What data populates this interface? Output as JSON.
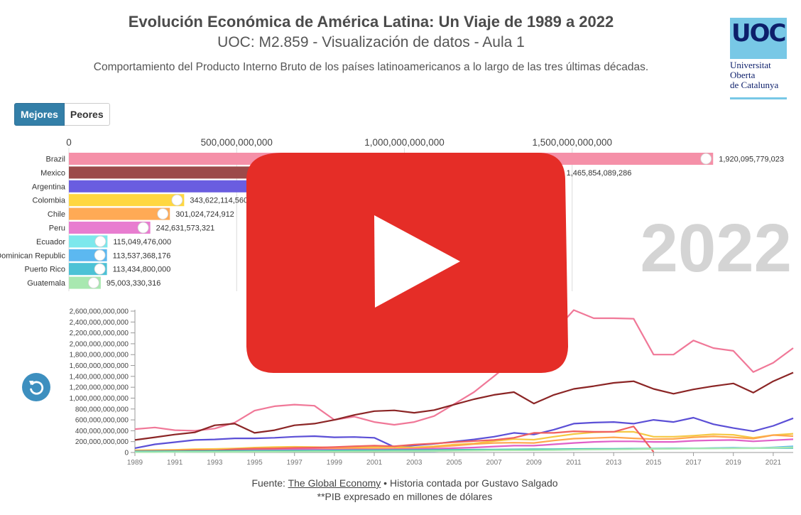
{
  "header": {
    "title": "Evolución Económica de América Latina: Un Viaje de 1989 a 2022",
    "subtitle": "UOC: M2.859 - Visualización de datos - Aula 1",
    "description": "Comportamiento del Producto Interno Bruto de los países latinoamericanos a lo largo de las tres últimas décadas."
  },
  "logo": {
    "mark": "UOC",
    "lines": [
      "Universitat",
      "Oberta",
      "de Catalunya"
    ]
  },
  "toggle": {
    "best_label": "Mejores",
    "worst_label": "Peores",
    "active": "Mejores"
  },
  "year_label": "2022",
  "footer": {
    "source_prefix": "Fuente: ",
    "source_link": "The Global Economy",
    "source_suffix": " • Historia contada por Gustavo Salgado",
    "note": "**PIB expresado en millones de dólares"
  },
  "video_overlay": {
    "icon": "play-icon",
    "color": "#e62117"
  },
  "colors": {
    "accent": "#337fa8",
    "replay": "#3d8fbf",
    "tick": "#444444",
    "axis": "#999999"
  },
  "chart_data": [
    {
      "type": "bar",
      "orientation": "horizontal",
      "x_ticks": [
        "0",
        "500,000,000,000",
        "1,000,000,000,000",
        "1,500,000,000,000"
      ],
      "xlim": [
        0,
        2000000000000
      ],
      "grid": true,
      "categories": [
        "Brazil",
        "Mexico",
        "Argentina",
        "Colombia",
        "Chile",
        "Peru",
        "Ecuador",
        "Dominican Republic",
        "Puerto Rico",
        "Guatemala"
      ],
      "values": [
        1920095779023,
        1465854089286,
        632000000000,
        343622114560,
        301024724912,
        242631573321,
        115049476000,
        113537368176,
        113434800000,
        95003330316
      ],
      "value_labels": [
        "1,920,095,779,023",
        "1,465,854,089,286",
        "",
        "343,622,114,560",
        "301,024,724,912",
        "242,631,573,321",
        "115,049,476,000",
        "113,537,368,176",
        "113,434,800,000",
        "95,003,330,316"
      ],
      "colors": [
        "#f590a8",
        "#9c4a4a",
        "#6a5de0",
        "#ffd740",
        "#ffaa55",
        "#e87dd0",
        "#7de8ec",
        "#5cb8f0",
        "#4cc2d6",
        "#a8e8b0"
      ]
    },
    {
      "type": "line",
      "x": [
        1989,
        1990,
        1991,
        1992,
        1993,
        1994,
        1995,
        1996,
        1997,
        1998,
        1999,
        2000,
        2001,
        2002,
        2003,
        2004,
        2005,
        2006,
        2007,
        2008,
        2009,
        2010,
        2011,
        2012,
        2013,
        2014,
        2015,
        2016,
        2017,
        2018,
        2019,
        2020,
        2021,
        2022
      ],
      "x_ticks": [
        "1989",
        "1991",
        "1993",
        "1995",
        "1997",
        "1999",
        "2001",
        "2003",
        "2005",
        "2007",
        "2009",
        "2011",
        "2013",
        "2015",
        "2017",
        "2019",
        "2021"
      ],
      "y_ticks": [
        "0",
        "200,000,000,000",
        "400,000,000,000",
        "600,000,000,000",
        "800,000,000,000",
        "1,000,000,000,000",
        "1,200,000,000,000",
        "1,400,000,000,000",
        "1,600,000,000,000",
        "1,800,000,000,000",
        "2,000,000,000,000",
        "2,200,000,000,000",
        "2,400,000,000,000",
        "2,600,000,000,000"
      ],
      "ylim": [
        0,
        2600000000000
      ],
      "series": [
        {
          "color": "#f07898",
          "values": [
            430,
            460,
            410,
            400,
            440,
            550,
            770,
            850,
            880,
            860,
            600,
            660,
            560,
            510,
            560,
            670,
            890,
            1110,
            1400,
            1700,
            1670,
            2210,
            2620,
            2470,
            2470,
            2460,
            1800,
            1800,
            2060,
            1920,
            1870,
            1480,
            1650,
            1920
          ]
        },
        {
          "color": "#8b2525",
          "values": [
            230,
            280,
            330,
            370,
            500,
            530,
            360,
            410,
            500,
            530,
            600,
            690,
            760,
            775,
            730,
            780,
            880,
            980,
            1060,
            1110,
            900,
            1060,
            1170,
            1220,
            1280,
            1310,
            1170,
            1080,
            1160,
            1220,
            1270,
            1100,
            1310,
            1470
          ]
        },
        {
          "color": "#5b4fd6",
          "values": [
            80,
            150,
            190,
            230,
            240,
            260,
            260,
            270,
            290,
            300,
            280,
            285,
            270,
            100,
            130,
            160,
            200,
            240,
            290,
            360,
            330,
            420,
            530,
            550,
            560,
            530,
            600,
            560,
            640,
            520,
            450,
            390,
            490,
            630
          ]
        },
        {
          "color": "#f5c842",
          "values": [
            40,
            45,
            50,
            60,
            65,
            75,
            90,
            100,
            105,
            100,
            90,
            100,
            100,
            100,
            95,
            115,
            145,
            165,
            210,
            245,
            235,
            290,
            340,
            370,
            380,
            380,
            290,
            290,
            310,
            335,
            325,
            270,
            320,
            345
          ]
        },
        {
          "color": "#ffa64d",
          "values": [
            30,
            35,
            38,
            45,
            50,
            55,
            72,
            78,
            85,
            80,
            73,
            78,
            70,
            70,
            78,
            100,
            125,
            155,
            175,
            180,
            175,
            220,
            255,
            265,
            280,
            260,
            245,
            250,
            280,
            295,
            280,
            255,
            320,
            300
          ]
        },
        {
          "color": "#e060c8",
          "values": [
            25,
            28,
            30,
            35,
            36,
            45,
            55,
            57,
            58,
            57,
            52,
            53,
            54,
            57,
            62,
            70,
            80,
            92,
            110,
            125,
            125,
            150,
            175,
            195,
            205,
            205,
            195,
            195,
            215,
            225,
            230,
            205,
            225,
            243
          ]
        },
        {
          "color": "#f06060",
          "values": [
            20,
            25,
            30,
            40,
            35,
            60,
            70,
            75,
            85,
            90,
            100,
            115,
            125,
            115,
            145,
            165,
            190,
            210,
            230,
            270,
            360,
            360,
            390,
            380,
            380,
            480,
            10,
            null,
            null,
            null,
            null,
            null,
            null,
            null
          ]
        },
        {
          "color": "#5cb8f0",
          "values": [
            10,
            12,
            12,
            13,
            14,
            15,
            16,
            18,
            19,
            20,
            21,
            22,
            24,
            26,
            22,
            23,
            36,
            38,
            42,
            46,
            48,
            53,
            58,
            61,
            64,
            67,
            70,
            73,
            76,
            81,
            88,
            79,
            94,
            114
          ]
        },
        {
          "color": "#40c0b0",
          "values": [
            20,
            22,
            24,
            25,
            28,
            30,
            32,
            33,
            35,
            37,
            38,
            40,
            42,
            44,
            45,
            48,
            50,
            52,
            55,
            57,
            60,
            62,
            64,
            66,
            68,
            70,
            72,
            74,
            76,
            78,
            80,
            80,
            82,
            84
          ]
        },
        {
          "color": "#a8e8b0",
          "values": [
            7,
            7,
            9,
            10,
            11,
            12,
            14,
            15,
            17,
            19,
            18,
            19,
            21,
            23,
            25,
            27,
            30,
            34,
            39,
            41,
            40,
            44,
            50,
            54,
            56,
            60,
            65,
            68,
            73,
            75,
            77,
            78,
            86,
            95
          ]
        }
      ]
    }
  ]
}
